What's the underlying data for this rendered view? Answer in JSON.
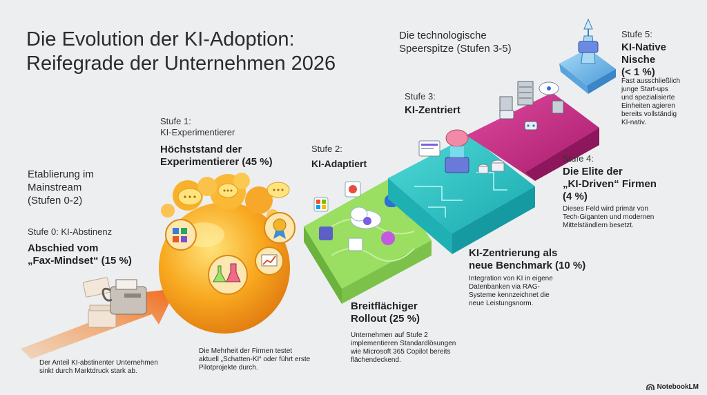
{
  "title": {
    "line1": "Die Evolution der KI-Adoption:",
    "line2": "Reifegrade der Unternehmen 2026"
  },
  "groups": {
    "mainstream": {
      "line1": "Etablierung im",
      "line2": "Mainstream",
      "line3": "(Stufen 0-2)"
    },
    "spitze": {
      "line1": "Die technologische",
      "line2": "Speerspitze (Stufen 3-5)"
    }
  },
  "stages": {
    "s0": {
      "label": "Stufe 0: KI-Abstinenz",
      "head1": "Abschied vom",
      "head2": "„Fax-Mindset“ (15 %)",
      "desc1": "Der Anteil KI-abstinenter Unternehmen",
      "desc2": "sinkt durch Marktdruck stark ab."
    },
    "s1": {
      "label": "Stufe 1:",
      "sub": "KI-Experimentierer",
      "head1": "Höchststand der",
      "head2": "Experimentierer (45 %)",
      "desc1": "Die Mehrheit der Firmen testet",
      "desc2": "aktuell „Schatten-KI“ oder führt erste",
      "desc3": "Pilotprojekte durch."
    },
    "s2": {
      "label": "Stufe 2:",
      "sub": "KI-Adaptiert",
      "head1": "Breitflächiger",
      "head2": "Rollout (25 %)",
      "desc1": "Unternehmen auf Stufe 2",
      "desc2": "implementieren Standardlösungen",
      "desc3": "wie Microsoft 365 Copilot bereits",
      "desc4": "flächendeckend."
    },
    "s3": {
      "label": "Stufe 3:",
      "sub": "KI-Zentriert",
      "head1": "KI-Zentrierung als",
      "head2": "neue Benchmark (10 %)",
      "desc1": "Integration von KI in eigene",
      "desc2": "Datenbanken via RAG-",
      "desc3": "Systeme kennzeichnet die",
      "desc4": "neue Leistungsnorm."
    },
    "s4": {
      "label": "Stufe 4:",
      "head1": "Die Elite der",
      "head2": "„KI-Driven“ Firmen",
      "head3": "(4 %)",
      "desc1": "Dieses Feld wird primär von",
      "desc2": "Tech-Giganten und modernen",
      "desc3": "Mittelständlern besetzt."
    },
    "s5": {
      "label": "Stufe 5:",
      "head1": "KI-Native",
      "head2": "Nische",
      "head3": "(< 1 %)",
      "desc1": "Fast ausschließlich",
      "desc2": "junge Start-ups",
      "desc3": "und spezialisierte",
      "desc4": "Einheiten agieren",
      "desc5": "bereits vollständig",
      "desc6": "KI-nativ."
    }
  },
  "branding": {
    "logo": "NotebookLM"
  },
  "colors": {
    "arrow": "#f07a2a",
    "sphere": "#f7a21f",
    "green": "#8fd45a",
    "teal": "#2ec9c7",
    "magenta": "#d02f8e",
    "blue": "#6fb8ea"
  }
}
